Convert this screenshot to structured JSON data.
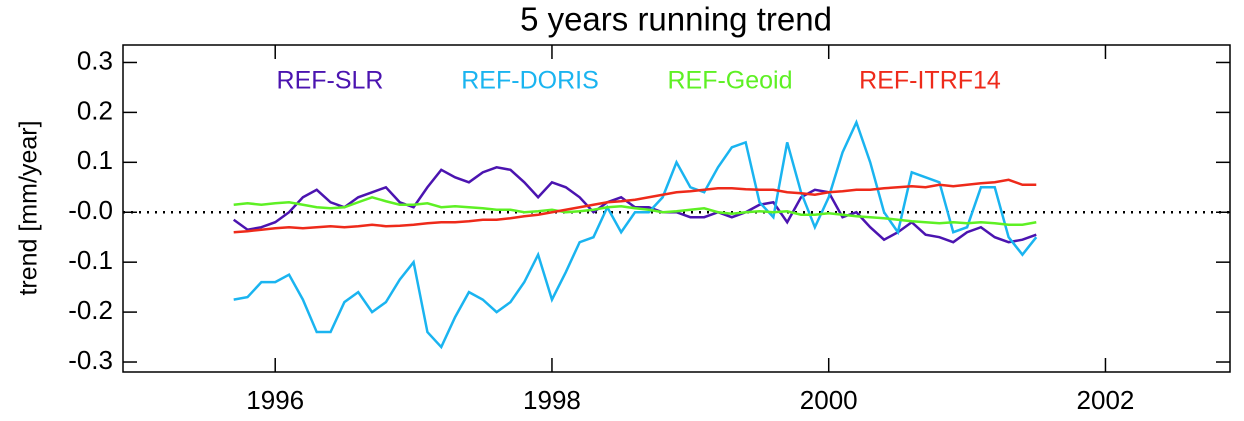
{
  "chart_data": {
    "type": "line",
    "title": "5 years running trend",
    "y_label": "trend [mm/year]",
    "x": [
      1995.7,
      1995.8,
      1995.9,
      1996.0,
      1996.1,
      1996.2,
      1996.3,
      1996.4,
      1996.5,
      1996.6,
      1996.7,
      1996.8,
      1996.9,
      1997.0,
      1997.1,
      1997.2,
      1997.3,
      1997.4,
      1997.5,
      1997.6,
      1997.7,
      1997.8,
      1997.9,
      1998.0,
      1998.1,
      1998.2,
      1998.3,
      1998.4,
      1998.5,
      1998.6,
      1998.7,
      1998.8,
      1998.9,
      1999.0,
      1999.1,
      1999.2,
      1999.3,
      1999.4,
      1999.5,
      1999.6,
      1999.7,
      1999.8,
      1999.9,
      2000.0,
      2000.1,
      2000.2,
      2000.3,
      2000.4,
      2000.5,
      2000.6,
      2000.7,
      2000.8,
      2000.9,
      2001.0,
      2001.1,
      2001.2,
      2001.3,
      2001.4,
      2001.5
    ],
    "series": [
      {
        "name": "REF-SLR",
        "color": "#4b14b0",
        "values": [
          -0.015,
          -0.035,
          -0.03,
          -0.02,
          0.0,
          0.03,
          0.045,
          0.02,
          0.01,
          0.03,
          0.04,
          0.05,
          0.02,
          0.01,
          0.05,
          0.085,
          0.07,
          0.06,
          0.08,
          0.09,
          0.085,
          0.06,
          0.03,
          0.06,
          0.05,
          0.03,
          0.0,
          0.02,
          0.03,
          0.01,
          0.01,
          0.0,
          0.0,
          -0.01,
          -0.01,
          0.0,
          -0.01,
          0.0,
          0.015,
          0.02,
          -0.02,
          0.03,
          0.045,
          0.04,
          -0.01,
          0.0,
          -0.03,
          -0.055,
          -0.04,
          -0.02,
          -0.045,
          -0.05,
          -0.06,
          -0.04,
          -0.03,
          -0.05,
          -0.06,
          -0.055,
          -0.045
        ]
      },
      {
        "name": "REF-DORIS",
        "color": "#1ab4f0",
        "values": [
          -0.175,
          -0.17,
          -0.14,
          -0.14,
          -0.125,
          -0.175,
          -0.24,
          -0.24,
          -0.18,
          -0.16,
          -0.2,
          -0.18,
          -0.135,
          -0.1,
          -0.24,
          -0.27,
          -0.21,
          -0.16,
          -0.175,
          -0.2,
          -0.18,
          -0.14,
          -0.085,
          -0.175,
          -0.12,
          -0.06,
          -0.05,
          0.01,
          -0.04,
          0.0,
          0.0,
          0.03,
          0.1,
          0.05,
          0.04,
          0.09,
          0.13,
          0.14,
          0.02,
          -0.01,
          0.14,
          0.04,
          -0.03,
          0.03,
          0.12,
          0.18,
          0.1,
          0.0,
          -0.04,
          0.08,
          0.07,
          0.06,
          -0.04,
          -0.03,
          0.05,
          0.05,
          -0.05,
          -0.085,
          -0.05
        ]
      },
      {
        "name": "REF-Geoid",
        "color": "#5ef024",
        "values": [
          0.015,
          0.018,
          0.015,
          0.018,
          0.02,
          0.015,
          0.01,
          0.008,
          0.01,
          0.02,
          0.03,
          0.022,
          0.015,
          0.015,
          0.018,
          0.01,
          0.012,
          0.01,
          0.008,
          0.005,
          0.005,
          0.0,
          0.002,
          0.005,
          0.0,
          0.002,
          0.005,
          0.01,
          0.012,
          0.008,
          0.005,
          0.0,
          0.002,
          0.005,
          0.008,
          0.0,
          -0.003,
          0.0,
          0.002,
          0.0,
          0.002,
          -0.005,
          -0.005,
          -0.002,
          -0.005,
          -0.008,
          -0.01,
          -0.012,
          -0.015,
          -0.018,
          -0.02,
          -0.022,
          -0.02,
          -0.022,
          -0.02,
          -0.022,
          -0.025,
          -0.025,
          -0.02
        ]
      },
      {
        "name": "REF-ITRF14",
        "color": "#ee2a1a",
        "values": [
          -0.04,
          -0.038,
          -0.035,
          -0.032,
          -0.03,
          -0.032,
          -0.03,
          -0.028,
          -0.03,
          -0.028,
          -0.025,
          -0.028,
          -0.027,
          -0.025,
          -0.022,
          -0.02,
          -0.02,
          -0.018,
          -0.015,
          -0.015,
          -0.012,
          -0.008,
          -0.005,
          0.0,
          0.005,
          0.01,
          0.015,
          0.02,
          0.022,
          0.025,
          0.03,
          0.035,
          0.04,
          0.042,
          0.045,
          0.048,
          0.048,
          0.046,
          0.045,
          0.045,
          0.04,
          0.038,
          0.035,
          0.04,
          0.042,
          0.045,
          0.045,
          0.048,
          0.05,
          0.052,
          0.05,
          0.055,
          0.052,
          0.055,
          0.058,
          0.06,
          0.065,
          0.055,
          0.055
        ]
      }
    ],
    "xlim": [
      1994.9,
      2002.9
    ],
    "xticks": [
      1996,
      1998,
      2000,
      2002
    ],
    "ylim": [
      -0.32,
      0.335
    ],
    "yticks": [
      -0.3,
      -0.2,
      -0.1,
      {
        "value": 0,
        "label": "-0.0"
      },
      0.1,
      0.2,
      0.3
    ],
    "zero_line": true,
    "legend": "top"
  }
}
